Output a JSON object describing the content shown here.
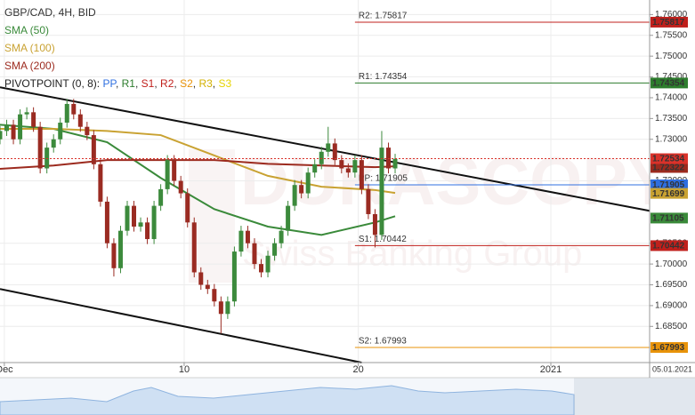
{
  "chart_data": {
    "type": "candlestick",
    "title": "GBP/CAD, 4H, BID",
    "x": [
      0,
      2,
      4,
      6,
      8,
      10,
      12,
      14,
      16,
      18,
      20,
      22,
      24,
      26,
      28,
      30,
      32,
      34,
      36,
      38,
      40,
      42,
      44,
      46,
      48,
      50,
      52,
      54,
      56,
      58,
      60,
      62,
      64,
      66,
      68,
      70,
      72,
      74,
      76,
      78,
      80,
      82,
      84,
      86,
      88,
      90,
      92,
      94,
      96,
      98,
      100,
      102,
      104,
      106,
      108,
      110,
      112,
      114,
      116,
      118
    ],
    "open": [
      1.73,
      1.732,
      1.7335,
      1.73,
      1.736,
      1.7365,
      1.733,
      1.723,
      1.728,
      1.73,
      1.734,
      1.7385,
      1.736,
      1.733,
      1.731,
      1.724,
      1.715,
      1.705,
      1.699,
      1.708,
      1.714,
      1.709,
      1.71,
      1.706,
      1.714,
      1.718,
      1.725,
      1.72,
      1.717,
      1.71,
      1.698,
      1.695,
      1.694,
      1.691,
      1.688,
      1.691,
      1.703,
      1.708,
      1.705,
      1.7,
      1.698,
      1.702,
      1.705,
      1.708,
      1.714,
      1.719,
      1.717,
      1.722,
      1.724,
      1.727,
      1.729,
      1.725,
      1.723,
      1.722,
      1.725,
      1.718,
      1.712,
      1.707,
      1.728,
      1.723
    ],
    "high": [
      1.7332,
      1.7347,
      1.7347,
      1.7372,
      1.7377,
      1.7377,
      1.7342,
      1.7292,
      1.7312,
      1.7352,
      1.7397,
      1.7397,
      1.7372,
      1.7342,
      1.7322,
      1.7252,
      1.7162,
      1.7062,
      1.7092,
      1.7152,
      1.7152,
      1.7112,
      1.7112,
      1.7152,
      1.7192,
      1.7262,
      1.7262,
      1.7212,
      1.7182,
      1.7112,
      1.6992,
      1.6962,
      1.6952,
      1.6922,
      1.6922,
      1.7042,
      1.7092,
      1.7092,
      1.7062,
      1.7012,
      1.7032,
      1.7062,
      1.7092,
      1.7152,
      1.7202,
      1.7202,
      1.7232,
      1.7252,
      1.7282,
      1.733,
      1.7302,
      1.7262,
      1.7242,
      1.7262,
      1.7262,
      1.7192,
      1.7132,
      1.732,
      1.7292,
      1.7265
    ],
    "low": [
      1.7288,
      1.7308,
      1.7288,
      1.7288,
      1.7348,
      1.7318,
      1.7218,
      1.7218,
      1.7268,
      1.7288,
      1.7328,
      1.7348,
      1.7318,
      1.7298,
      1.7228,
      1.7138,
      1.7038,
      1.697,
      1.6978,
      1.7068,
      1.7078,
      1.7078,
      1.7048,
      1.7048,
      1.7128,
      1.7168,
      1.7188,
      1.7158,
      1.7088,
      1.6968,
      1.6938,
      1.6928,
      1.6898,
      1.6833,
      1.6868,
      1.6898,
      1.7018,
      1.7038,
      1.6988,
      1.6968,
      1.6968,
      1.7008,
      1.7038,
      1.7068,
      1.7128,
      1.7158,
      1.7158,
      1.7208,
      1.7228,
      1.7258,
      1.7238,
      1.7218,
      1.7208,
      1.7208,
      1.7168,
      1.7108,
      1.704,
      1.7058,
      1.7218,
      1.7218
    ],
    "close": [
      1.732,
      1.7335,
      1.73,
      1.736,
      1.7365,
      1.733,
      1.723,
      1.728,
      1.73,
      1.734,
      1.7385,
      1.736,
      1.733,
      1.731,
      1.724,
      1.715,
      1.705,
      1.699,
      1.708,
      1.714,
      1.709,
      1.71,
      1.706,
      1.714,
      1.718,
      1.725,
      1.72,
      1.717,
      1.71,
      1.698,
      1.695,
      1.694,
      1.691,
      1.688,
      1.691,
      1.703,
      1.708,
      1.705,
      1.7,
      1.698,
      1.702,
      1.705,
      1.708,
      1.714,
      1.719,
      1.717,
      1.722,
      1.724,
      1.727,
      1.729,
      1.725,
      1.723,
      1.722,
      1.725,
      1.718,
      1.712,
      1.707,
      1.728,
      1.723,
      1.7253
    ],
    "up_color": "#3c8a3c",
    "down_color": "#9a2b22",
    "xlim": [
      0,
      194
    ],
    "ylim": [
      1.6763,
      1.7635
    ],
    "xticks": [
      {
        "value": 1.3,
        "label": "Dec"
      },
      {
        "value": 55,
        "label": "10"
      },
      {
        "value": 107,
        "label": "20"
      },
      {
        "value": 164.5,
        "label": "2021"
      }
    ],
    "yticks": [
      {
        "value": 1.76,
        "label": "1.76000"
      },
      {
        "value": 1.755,
        "label": "1.75500"
      },
      {
        "value": 1.75,
        "label": "1.75000"
      },
      {
        "value": 1.745,
        "label": "1.74500"
      },
      {
        "value": 1.74,
        "label": "1.74000"
      },
      {
        "value": 1.735,
        "label": "1.73500"
      },
      {
        "value": 1.73,
        "label": "1.73000"
      },
      {
        "value": 1.72,
        "label": "1.72000"
      },
      {
        "value": 1.705,
        "label": "1.70500"
      },
      {
        "value": 1.7,
        "label": "1.70000"
      },
      {
        "value": 1.695,
        "label": "1.69500"
      },
      {
        "value": 1.69,
        "label": "1.69000"
      },
      {
        "value": 1.685,
        "label": "1.68500"
      }
    ],
    "grid": true,
    "series": [
      {
        "name": "SMA (50)",
        "color": "#3a8a3a",
        "x": [
          0,
          16,
          32,
          48,
          64,
          80,
          96,
          112,
          118
        ],
        "values": [
          1.7335,
          1.7325,
          1.7293,
          1.7207,
          1.7132,
          1.709,
          1.707,
          1.71,
          1.7115
        ],
        "last_value": 1.71105
      },
      {
        "name": "SMA (100)",
        "color": "#c9a232",
        "x": [
          0,
          16,
          32,
          48,
          64,
          80,
          96,
          112,
          118
        ],
        "values": [
          1.7325,
          1.7325,
          1.732,
          1.731,
          1.7261,
          1.7212,
          1.7186,
          1.7178,
          1.7171
        ],
        "last_value": 1.71699
      },
      {
        "name": "SMA (200)",
        "color": "#9c2a1e",
        "x": [
          0,
          16,
          32,
          48,
          64,
          80,
          96,
          112,
          118
        ],
        "values": [
          1.7229,
          1.7237,
          1.725,
          1.725,
          1.725,
          1.7241,
          1.7237,
          1.7233,
          1.7235
        ],
        "last_value": 1.72322
      }
    ],
    "trend_lines": [
      {
        "x": [
          0,
          194
        ],
        "values": [
          1.7425,
          1.7128
        ]
      },
      {
        "x": [
          0,
          108
        ],
        "values": [
          1.694,
          1.6763
        ]
      }
    ],
    "pivot_title": "PIVOTPOINT (0, 8):",
    "pivots": [
      {
        "name": "PP",
        "color": "#2f6fe0",
        "value": 1.71905,
        "label": "PP: 1.71905"
      },
      {
        "name": "R1",
        "color": "#2d7d2d",
        "value": 1.74354,
        "label": "R1: 1.74354"
      },
      {
        "name": "S1",
        "color": "#c0201c",
        "value": 1.70442,
        "label": "S1: 1.70442"
      },
      {
        "name": "R2",
        "color": "#c0201c",
        "value": 1.75817,
        "label": "R2: 1.75817"
      },
      {
        "name": "S2",
        "color": "#e8930a",
        "value": 1.67993,
        "label": "S2: 1.67993"
      },
      {
        "name": "R3",
        "color": "#d2b000"
      },
      {
        "name": "S3",
        "color": "#e6d400"
      }
    ],
    "current_price": 1.72534,
    "current_color": "#d9322a",
    "date_label": "05.01.2021",
    "watermark": [
      "DUKASCOPY",
      "Swiss Banking Group"
    ]
  }
}
